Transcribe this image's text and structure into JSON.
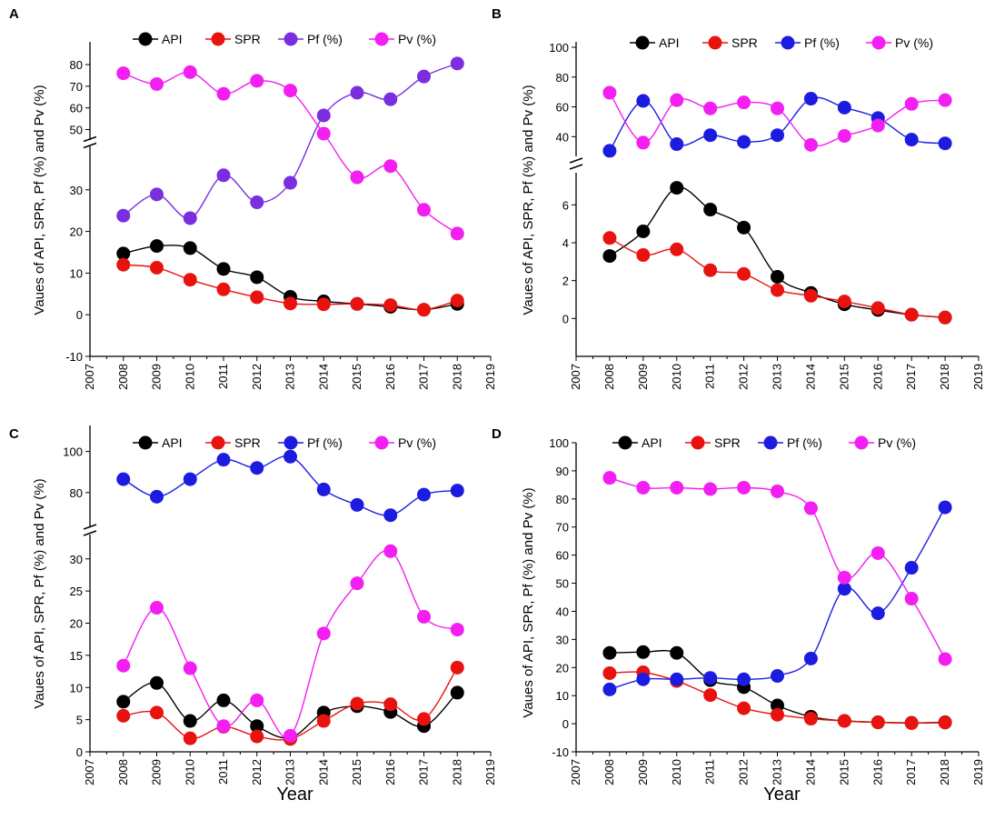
{
  "figure": {
    "y_axis_label": "Vaues of API, SPR, Pf (%) and Pv (%)",
    "x_axis_label": "Year"
  },
  "colors": {
    "API": "#000000",
    "SPR": "#e8130f",
    "Pf_purple": "#7a2ee0",
    "Pf_blue": "#1c1ce0",
    "Pv": "#f21ef2"
  },
  "chart_data": [
    {
      "type": "line",
      "panel": "A",
      "x": [
        2008,
        2009,
        2010,
        2011,
        2012,
        2013,
        2014,
        2015,
        2016,
        2017,
        2018
      ],
      "xlim": [
        2007,
        2019
      ],
      "xticks": [
        "2007",
        "2008",
        "2009",
        "2010",
        "2011",
        "2012",
        "2013",
        "2014",
        "2015",
        "2016",
        "2017",
        "2018",
        "2019"
      ],
      "ylim_lower": [
        -10,
        40
      ],
      "ylim_upper": [
        46,
        88
      ],
      "yticks_lower": [
        "-10",
        "0",
        "10",
        "20",
        "30"
      ],
      "yticks_upper": [
        "50",
        "60",
        "70",
        "80"
      ],
      "series": [
        {
          "name": "API",
          "color": "#000000",
          "values": [
            14.7,
            16.5,
            16.0,
            11.0,
            9.0,
            4.3,
            3.2,
            2.6,
            1.9,
            1.2,
            2.6
          ]
        },
        {
          "name": "SPR",
          "color": "#e8130f",
          "values": [
            12.0,
            11.3,
            8.4,
            6.1,
            4.2,
            2.7,
            2.5,
            2.6,
            2.3,
            1.2,
            3.4
          ]
        },
        {
          "name": "Pf (%)",
          "color": "#7a2ee0",
          "values": [
            23.8,
            28.9,
            23.2,
            33.5,
            27.0,
            31.7,
            56.5,
            67.0,
            64.0,
            74.5,
            80.5
          ]
        },
        {
          "name": "Pv (%)",
          "color": "#f21ef2",
          "values": [
            76.0,
            71.0,
            76.5,
            66.5,
            72.5,
            68.0,
            43.5,
            33.0,
            35.7,
            25.2,
            19.5
          ]
        }
      ]
    },
    {
      "type": "line",
      "panel": "B",
      "x": [
        2008,
        2009,
        2010,
        2011,
        2012,
        2013,
        2014,
        2015,
        2016,
        2017,
        2018
      ],
      "xlim": [
        2007,
        2019
      ],
      "xticks": [
        "2007",
        "2008",
        "2009",
        "2010",
        "2011",
        "2012",
        "2013",
        "2014",
        "2015",
        "2016",
        "2017",
        "2018",
        "2019"
      ],
      "ylim_lower": [
        -2,
        7.6
      ],
      "ylim_upper": [
        28,
        100
      ],
      "yticks_lower": [
        "0",
        "2",
        "4",
        "6"
      ],
      "yticks_upper": [
        "40",
        "60",
        "80",
        "100"
      ],
      "series": [
        {
          "name": "API",
          "color": "#000000",
          "values": [
            3.3,
            4.6,
            6.9,
            5.75,
            4.8,
            2.2,
            1.35,
            0.75,
            0.45,
            0.2,
            0.05
          ]
        },
        {
          "name": "SPR",
          "color": "#e8130f",
          "values": [
            4.25,
            3.35,
            3.65,
            2.55,
            2.35,
            1.5,
            1.2,
            0.9,
            0.55,
            0.2,
            0.05
          ]
        },
        {
          "name": "Pf (%)",
          "color": "#1c1ce0",
          "values": [
            30.5,
            64.0,
            35.0,
            41.0,
            36.5,
            41.0,
            65.5,
            59.5,
            52.5,
            38.0,
            35.5
          ]
        },
        {
          "name": "Pv (%)",
          "color": "#f21ef2",
          "values": [
            69.5,
            36.0,
            64.5,
            59.0,
            63.0,
            59.0,
            34.5,
            40.5,
            47.5,
            62.0,
            64.5
          ]
        }
      ]
    },
    {
      "type": "line",
      "panel": "C",
      "x": [
        2008,
        2009,
        2010,
        2011,
        2012,
        2013,
        2014,
        2015,
        2016,
        2017,
        2018
      ],
      "xlim": [
        2007,
        2019
      ],
      "xticks": [
        "2007",
        "2008",
        "2009",
        "2010",
        "2011",
        "2012",
        "2013",
        "2014",
        "2015",
        "2016",
        "2017",
        "2018",
        "2019"
      ],
      "ylim_lower": [
        0,
        33.5
      ],
      "ylim_upper": [
        64,
        110
      ],
      "yticks_lower": [
        "0",
        "5",
        "10",
        "15",
        "20",
        "25",
        "30"
      ],
      "yticks_upper": [
        "80",
        "100"
      ],
      "series": [
        {
          "name": "API",
          "color": "#000000",
          "values": [
            7.8,
            10.7,
            4.8,
            8.0,
            4.0,
            2.2,
            6.1,
            7.1,
            6.2,
            4.0,
            9.2
          ]
        },
        {
          "name": "SPR",
          "color": "#e8130f",
          "values": [
            5.6,
            6.1,
            2.1,
            3.9,
            2.4,
            2.0,
            4.8,
            7.5,
            7.4,
            5.1,
            13.1
          ]
        },
        {
          "name": "Pf (%)",
          "color": "#1c1ce0",
          "values": [
            86.5,
            78.0,
            86.5,
            96.0,
            92.0,
            97.5,
            81.5,
            74.0,
            69.0,
            79.0,
            81.0
          ]
        },
        {
          "name": "Pv (%)",
          "color": "#f21ef2",
          "values": [
            13.4,
            22.4,
            13.0,
            4.0,
            8.0,
            2.5,
            18.4,
            26.2,
            31.2,
            21.0,
            19.0
          ]
        }
      ]
    },
    {
      "type": "line",
      "panel": "D",
      "x": [
        2008,
        2009,
        2010,
        2011,
        2012,
        2013,
        2014,
        2015,
        2016,
        2017,
        2018
      ],
      "xlim": [
        2007,
        2019
      ],
      "xticks": [
        "2007",
        "2008",
        "2009",
        "2010",
        "2011",
        "2012",
        "2013",
        "2014",
        "2015",
        "2016",
        "2017",
        "2018",
        "2019"
      ],
      "ylim": [
        -10,
        100
      ],
      "yticks": [
        "-10",
        "0",
        "10",
        "20",
        "30",
        "40",
        "50",
        "60",
        "70",
        "80",
        "90",
        "100"
      ],
      "series": [
        {
          "name": "API",
          "color": "#000000",
          "values": [
            25.2,
            25.5,
            25.2,
            15.5,
            13.0,
            6.5,
            2.5,
            1.0,
            0.5,
            0.3,
            0.5
          ]
        },
        {
          "name": "SPR",
          "color": "#e8130f",
          "values": [
            18.0,
            18.3,
            15.2,
            10.2,
            5.5,
            3.2,
            1.8,
            1.0,
            0.5,
            0.2,
            0.4
          ]
        },
        {
          "name": "Pf (%)",
          "color": "#1c1ce0",
          "values": [
            12.2,
            15.8,
            15.8,
            16.3,
            15.8,
            17.0,
            23.2,
            48.0,
            39.3,
            55.5,
            77.0
          ]
        },
        {
          "name": "Pv (%)",
          "color": "#f21ef2",
          "values": [
            87.5,
            84.0,
            84.0,
            83.5,
            84.0,
            82.7,
            76.7,
            52.0,
            60.7,
            44.5,
            23.0
          ]
        }
      ]
    }
  ]
}
